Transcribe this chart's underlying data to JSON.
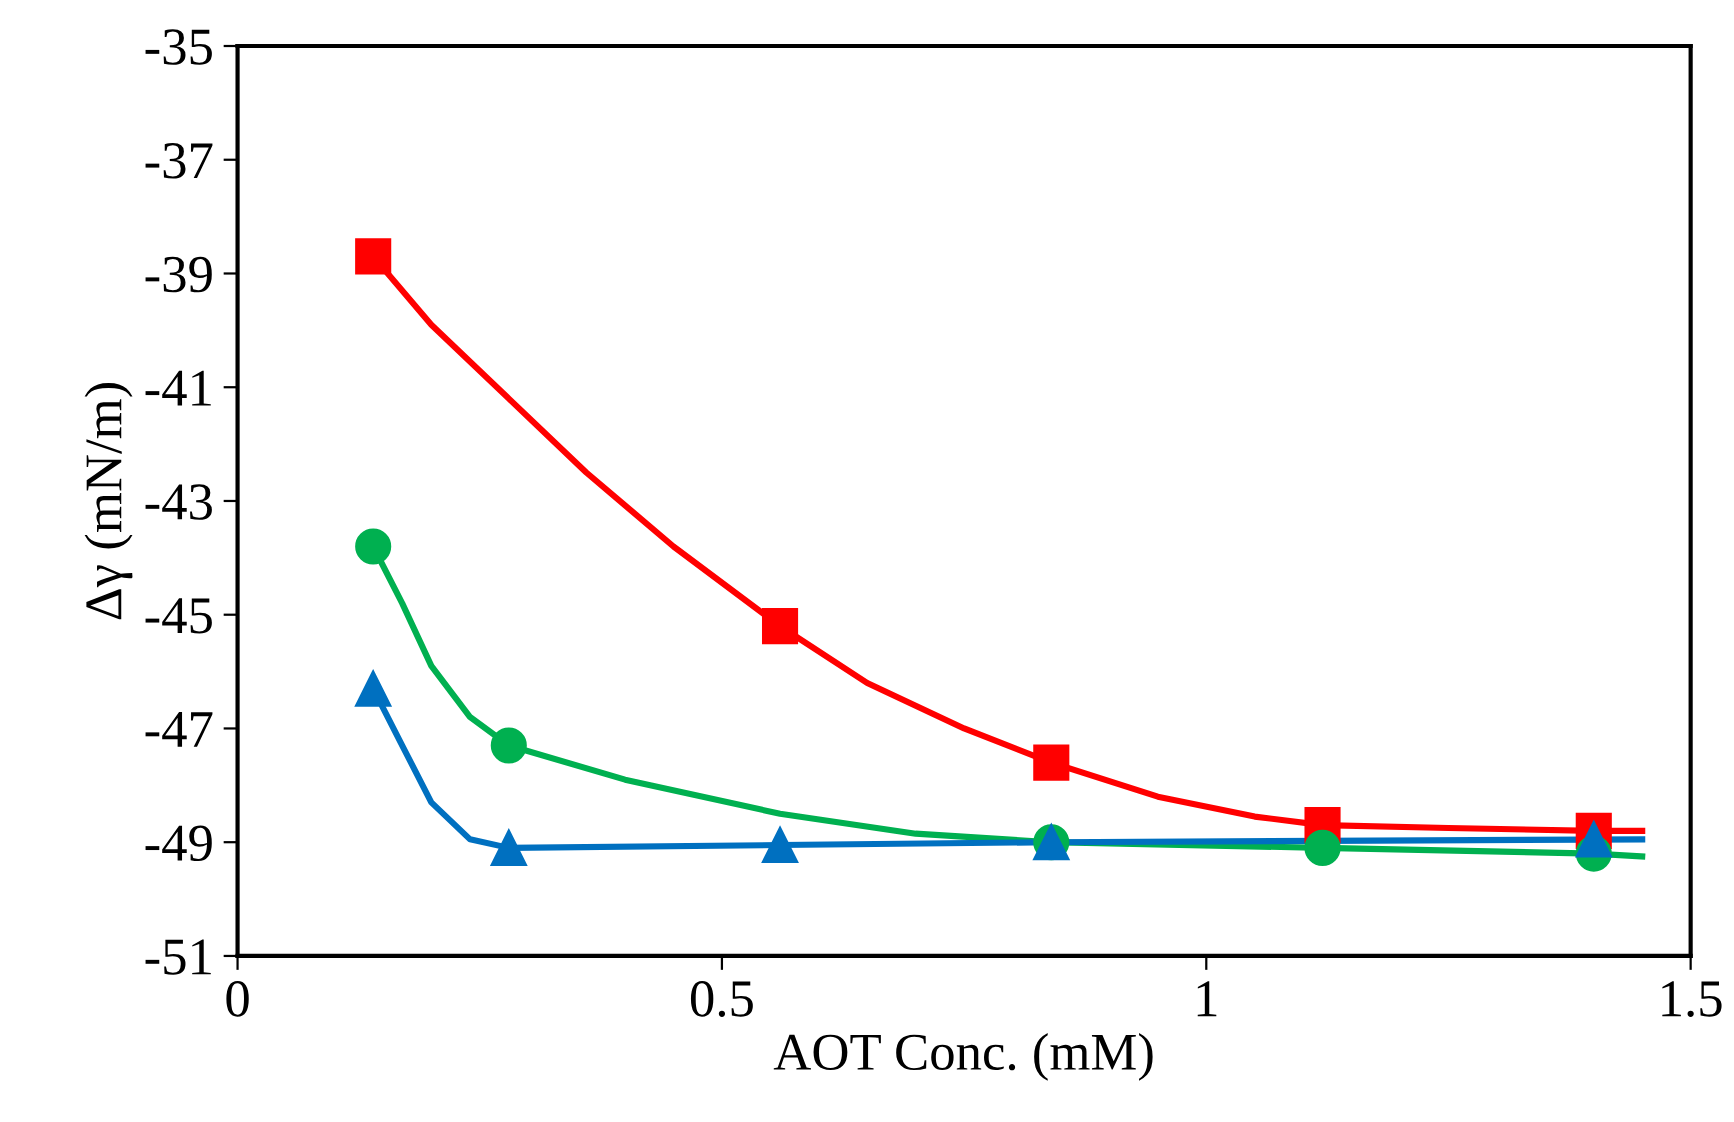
{
  "chart_data": {
    "type": "scatter",
    "xlabel": "AOT Conc. (mM)",
    "ylabel": "Δγ (mN/m)",
    "xlim": [
      0,
      1.5
    ],
    "xticks": [
      0,
      0.5,
      1,
      1.5
    ],
    "ylim": [
      -51,
      -35
    ],
    "yticks": [
      -51,
      -49,
      -47,
      -45,
      -43,
      -41,
      -39,
      -37,
      -35
    ],
    "grid": false,
    "series": [
      {
        "type": "line",
        "color": "#ff0000",
        "marker": "none",
        "x": [
          0.14,
          0.2,
          0.28,
          0.36,
          0.45,
          0.56,
          0.65,
          0.75,
          0.84,
          0.95,
          1.05,
          1.12,
          1.25,
          1.4,
          1.45
        ],
        "values": [
          -38.7,
          -39.9,
          -41.2,
          -42.5,
          -43.8,
          -45.2,
          -46.2,
          -47.0,
          -47.6,
          -48.2,
          -48.55,
          -48.7,
          -48.75,
          -48.8,
          -48.8
        ]
      },
      {
        "type": "line",
        "color": "#00b050",
        "marker": "none",
        "x": [
          0.14,
          0.17,
          0.2,
          0.24,
          0.28,
          0.4,
          0.56,
          0.7,
          0.84,
          1.12,
          1.4,
          1.45
        ],
        "values": [
          -43.8,
          -44.8,
          -45.9,
          -46.8,
          -47.3,
          -47.9,
          -48.5,
          -48.85,
          -49.0,
          -49.1,
          -49.2,
          -49.25
        ]
      },
      {
        "type": "line",
        "color": "#0070c0",
        "marker": "none",
        "x": [
          0.14,
          0.17,
          0.2,
          0.24,
          0.28,
          0.56,
          0.84,
          1.45
        ],
        "values": [
          -46.3,
          -47.3,
          -48.3,
          -48.95,
          -49.1,
          -49.05,
          -49.0,
          -48.95
        ]
      },
      {
        "color": "#ff0000",
        "marker": "square",
        "x": [
          0.14,
          0.56,
          0.84,
          1.12,
          1.4
        ],
        "values": [
          -38.7,
          -45.2,
          -47.6,
          -48.7,
          -48.8
        ]
      },
      {
        "color": "#00b050",
        "marker": "circle",
        "x": [
          0.14,
          0.28,
          0.84,
          1.12,
          1.4
        ],
        "values": [
          -43.8,
          -47.3,
          -49.0,
          -49.1,
          -49.2
        ]
      },
      {
        "color": "#0070c0",
        "marker": "triangle",
        "x": [
          0.14,
          0.28,
          0.56,
          0.84,
          1.4
        ],
        "values": [
          -46.3,
          -49.1,
          -49.05,
          -49.0,
          -48.95
        ]
      }
    ]
  }
}
